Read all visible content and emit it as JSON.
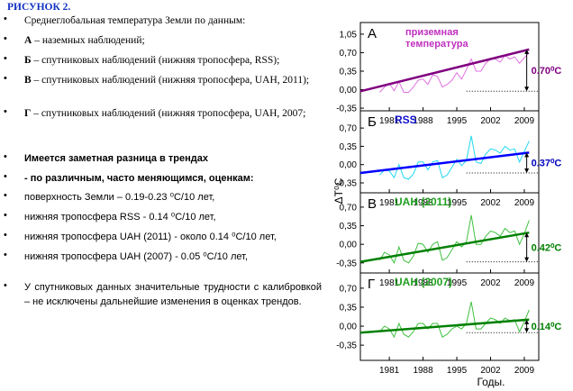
{
  "document": {
    "heading": "РИСУНОК 2.",
    "intro": "Среднеглобальная температура Земли по данным:",
    "items": [
      {
        "letter": "А",
        "text": " – наземных наблюдений;"
      },
      {
        "letter": "Б",
        "text": " – спутниковых наблюдений (нижняя тропосфера, RSS);"
      },
      {
        "letter": "В",
        "text": " – спутниковых наблюдений (нижняя тропосфера, UAH, 2011);"
      },
      {
        "letter": "Г",
        "text": " – спутниковых наблюдений (нижняя тропосфера, UAH, 2007;"
      }
    ],
    "bold_lines": [
      "Имеется заметная разница в трендах",
      "- по различным, часто меняющимся, оценкам:"
    ],
    "trend_lines": [
      "поверхность Земли – 0.19-0.23 ⁰C/10 лет,",
      "нижняя тропосфера RSS - 0.14 ⁰C/10 лет,",
      "нижняя тропосфера UAH (2011) - около 0.14 ⁰C/10 лет,",
      "нижняя тропосфера UAH (2007) - 0.05 ⁰C/10 лет,"
    ],
    "conclusion": "У спутниковых данных значительные трудности с калибровкой – не исключены дальнейшие изменения в оценках трендов."
  },
  "figure": {
    "y_label": "ΔT⁰C",
    "x_label": "Годы."
  },
  "chart_data": [
    {
      "type": "line",
      "panel_label": "А",
      "label_lines": [
        "приземная",
        "температура"
      ],
      "label_color": "#c030c0",
      "annotation": "0.70⁰C",
      "annotation_color": "#800080",
      "xlim": [
        1975,
        2012
      ],
      "xticks": [
        1981,
        1988,
        1995,
        2002,
        2009
      ],
      "ylim": [
        -0.4,
        1.27
      ],
      "yticks": [
        {
          "value": 1.05,
          "label": "1,05"
        },
        {
          "value": 0.7,
          "label": "0,70"
        },
        {
          "value": 0.35,
          "label": "0,35"
        },
        {
          "value": 0,
          "label": "0,00"
        },
        {
          "value": -0.35,
          "label": "-0,35"
        }
      ],
      "series": [
        {
          "color": "#e070e0",
          "x": [
            1979,
            1980,
            1981,
            1982,
            1983,
            1984,
            1985,
            1986,
            1987,
            1988,
            1989,
            1990,
            1991,
            1992,
            1993,
            1994,
            1995,
            1996,
            1997,
            1998,
            1999,
            2000,
            2001,
            2002,
            2003,
            2004,
            2005,
            2006,
            2007,
            2008,
            2009,
            2010
          ],
          "values": [
            -0.05,
            0.05,
            0.12,
            -0.02,
            0.15,
            -0.05,
            -0.05,
            0.05,
            0.18,
            0.2,
            0.1,
            0.28,
            0.25,
            0.05,
            0.1,
            0.18,
            0.32,
            0.2,
            0.38,
            0.58,
            0.35,
            0.35,
            0.5,
            0.58,
            0.58,
            0.52,
            0.65,
            0.58,
            0.62,
            0.5,
            0.6,
            0.7
          ]
        },
        {
          "color": "#800080",
          "x": [
            1975,
            2010
          ],
          "values": [
            -0.03,
            0.76
          ]
        }
      ]
    },
    {
      "type": "line",
      "panel_label": "Б",
      "label_lines": [
        "RSS"
      ],
      "label_color": "#1010d0",
      "annotation": "0.37⁰C",
      "annotation_color": "#0000c0",
      "xlim": [
        1975,
        2012
      ],
      "xticks": [
        1981,
        1988,
        1995,
        2002,
        2009
      ],
      "ylim": [
        -0.54,
        1.03
      ],
      "yticks": [
        {
          "value": 0.7,
          "label": "0,70"
        },
        {
          "value": 0.35,
          "label": "0,35"
        },
        {
          "value": 0,
          "label": "0,00"
        },
        {
          "value": -0.35,
          "label": "-0,35"
        }
      ],
      "series": [
        {
          "color": "#20d8f0",
          "x": [
            1979,
            1980,
            1981,
            1982,
            1983,
            1984,
            1985,
            1986,
            1987,
            1988,
            1989,
            1990,
            1991,
            1992,
            1993,
            1994,
            1995,
            1996,
            1997,
            1998,
            1999,
            2000,
            2001,
            2002,
            2003,
            2004,
            2005,
            2006,
            2007,
            2008,
            2009,
            2010
          ],
          "values": [
            -0.2,
            -0.1,
            -0.12,
            -0.25,
            0,
            -0.25,
            -0.28,
            -0.18,
            0.05,
            0.05,
            -0.1,
            0.05,
            0.08,
            -0.25,
            -0.2,
            -0.05,
            0.1,
            -0.02,
            0.08,
            0.55,
            0.05,
            0.02,
            0.2,
            0.3,
            0.28,
            0.22,
            0.35,
            0.28,
            0.3,
            0.05,
            0.25,
            0.45
          ]
        },
        {
          "color": "#0000ff",
          "x": [
            1975,
            2010
          ],
          "values": [
            -0.16,
            0.23
          ]
        }
      ]
    },
    {
      "type": "line",
      "panel_label": "В",
      "label_lines": [
        "UAH (2011)"
      ],
      "label_color": "#20a020",
      "annotation": "0.42⁰C",
      "annotation_color": "#008000",
      "xlim": [
        1975,
        2012
      ],
      "xticks": [
        1981,
        1988,
        1995,
        2002,
        2009
      ],
      "ylim": [
        -0.54,
        0.97
      ],
      "yticks": [
        {
          "value": 0.7,
          "label": "0,70"
        },
        {
          "value": 0.35,
          "label": "0,35"
        },
        {
          "value": 0,
          "label": "0,00"
        },
        {
          "value": -0.35,
          "label": "-0,35"
        }
      ],
      "series": [
        {
          "color": "#40c040",
          "x": [
            1979,
            1980,
            1981,
            1982,
            1983,
            1984,
            1985,
            1986,
            1987,
            1988,
            1989,
            1990,
            1991,
            1992,
            1993,
            1994,
            1995,
            1996,
            1997,
            1998,
            1999,
            2000,
            2001,
            2002,
            2003,
            2004,
            2005,
            2006,
            2007,
            2008,
            2009,
            2010
          ],
          "values": [
            -0.3,
            -0.15,
            -0.2,
            -0.35,
            -0.05,
            -0.3,
            -0.35,
            -0.22,
            0.02,
            0,
            -0.15,
            0,
            0.05,
            -0.3,
            -0.25,
            -0.1,
            0.05,
            -0.05,
            0.05,
            0.55,
            0,
            0,
            0.15,
            0.25,
            0.22,
            0.15,
            0.3,
            0.22,
            0.25,
            0,
            0.2,
            0.45
          ]
        },
        {
          "color": "#008000",
          "x": [
            1975,
            2010
          ],
          "values": [
            -0.33,
            0.22
          ]
        }
      ]
    },
    {
      "type": "line",
      "panel_label": "Г",
      "label_lines": [
        "UAH (2007)"
      ],
      "label_color": "#20a020",
      "annotation": "0.14⁰C",
      "annotation_color": "#008000",
      "xlim": [
        1975,
        2012
      ],
      "xticks": [
        1981,
        1988,
        1995,
        2002,
        2009
      ],
      "ylim": [
        -0.63,
        0.98
      ],
      "yticks": [
        {
          "value": 0.7,
          "label": "0,70"
        },
        {
          "value": 0.35,
          "label": "0,35"
        },
        {
          "value": 0,
          "label": "0,00"
        },
        {
          "value": -0.35,
          "label": "-0,35"
        }
      ],
      "series": [
        {
          "color": "#40c040",
          "x": [
            1979,
            1980,
            1981,
            1982,
            1983,
            1984,
            1985,
            1986,
            1987,
            1988,
            1989,
            1990,
            1991,
            1992,
            1993,
            1994,
            1995,
            1996,
            1997,
            1998,
            1999,
            2000,
            2001,
            2002,
            2003,
            2004,
            2005,
            2006,
            2007,
            2008,
            2009,
            2010
          ],
          "values": [
            -0.1,
            0,
            -0.05,
            -0.2,
            0.05,
            -0.15,
            -0.2,
            -0.1,
            0.05,
            0.05,
            -0.05,
            0.05,
            0.05,
            -0.2,
            -0.15,
            -0.05,
            0,
            -0.05,
            0.05,
            0.45,
            -0.05,
            -0.05,
            0.05,
            0.15,
            0.12,
            0.05,
            0.15,
            0.1,
            0.12,
            -0.1,
            0.08,
            0.3
          ]
        },
        {
          "color": "#008000",
          "x": [
            1975,
            2010
          ],
          "values": [
            -0.12,
            0.12
          ]
        }
      ]
    }
  ]
}
